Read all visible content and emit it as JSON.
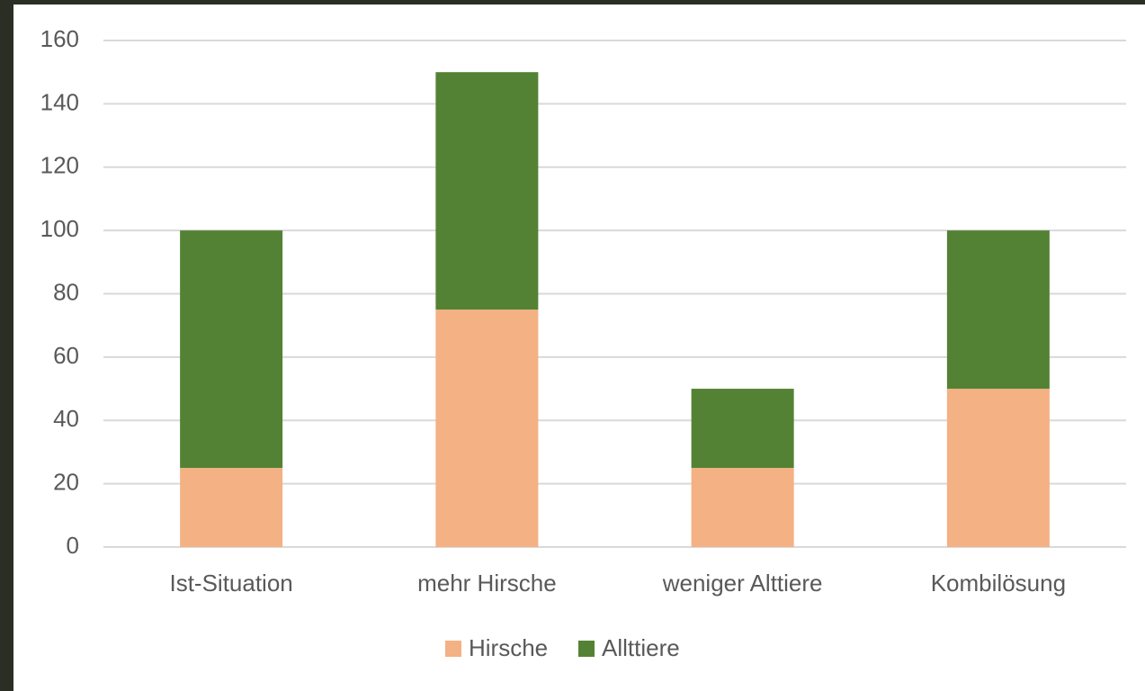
{
  "chart_data": {
    "type": "stacked-bar",
    "categories": [
      "Ist-Situation",
      "mehr Hirsche",
      "weniger Alttiere",
      "Kombilösung"
    ],
    "series": [
      {
        "name": "Hirsche",
        "color": "#f4b183",
        "values": [
          25,
          75,
          25,
          50
        ]
      },
      {
        "name": "Allttiere",
        "color": "#548235",
        "values": [
          75,
          75,
          25,
          50
        ]
      }
    ],
    "ylim": [
      0,
      160
    ],
    "yticks": [
      0,
      20,
      40,
      60,
      80,
      100,
      120,
      140,
      160
    ],
    "grid": true,
    "legend": "bottom"
  }
}
